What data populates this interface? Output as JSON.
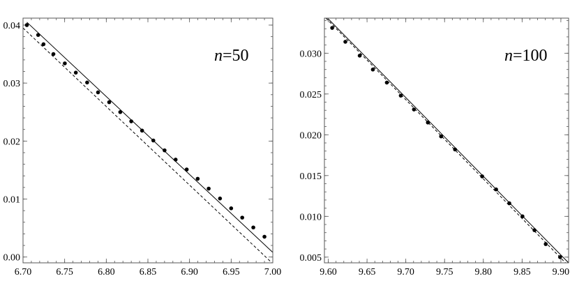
{
  "chart_data": [
    {
      "type": "scatter",
      "panel_label_var": "n",
      "panel_label_eq": "=50",
      "xlim": [
        6.7,
        7.0
      ],
      "ylim": [
        -0.001,
        0.0412
      ],
      "xticks": [
        6.7,
        6.75,
        6.8,
        6.85,
        6.9,
        6.95,
        7.0
      ],
      "xtick_labels": [
        "6.70",
        "6.75",
        "6.80",
        "6.85",
        "6.90",
        "6.95",
        "7.00"
      ],
      "yticks": [
        0.0,
        0.01,
        0.02,
        0.03,
        0.04
      ],
      "ytick_labels": [
        "0.00",
        "0.01",
        "0.02",
        "0.03",
        "0.04"
      ],
      "series": [
        {
          "style": "points",
          "x": [
            6.7046,
            6.7182,
            6.7246,
            6.7365,
            6.7502,
            6.7634,
            6.777,
            6.7901,
            6.8035,
            6.8168,
            6.83,
            6.843,
            6.8565,
            6.87,
            6.8833,
            6.8966,
            6.9098,
            6.923,
            6.9366,
            6.95,
            6.9633,
            6.9766,
            6.99
          ],
          "y": [
            0.04,
            0.0383,
            0.0367,
            0.035,
            0.0334,
            0.0318,
            0.0301,
            0.0284,
            0.0267,
            0.025,
            0.0234,
            0.0218,
            0.0201,
            0.0184,
            0.0168,
            0.0151,
            0.0135,
            0.0118,
            0.0101,
            0.0084,
            0.0068,
            0.0051,
            0.0035
          ]
        },
        {
          "style": "solid",
          "x": [
            6.7046,
            7.0
          ],
          "y": [
            0.0405,
            0.0008
          ]
        },
        {
          "style": "dashed",
          "x": [
            6.7,
            6.999
          ],
          "y": [
            0.0395,
            -0.001
          ]
        }
      ]
    },
    {
      "type": "scatter",
      "panel_label_var": "n",
      "panel_label_eq": "=100",
      "xlim": [
        9.595,
        9.91
      ],
      "ylim": [
        0.0043,
        0.0343
      ],
      "xticks": [
        9.6,
        9.65,
        9.7,
        9.75,
        9.8,
        9.85,
        9.9
      ],
      "xtick_labels": [
        "9.60",
        "9.65",
        "9.70",
        "9.75",
        "9.80",
        "9.85",
        "9.90"
      ],
      "yticks": [
        0.005,
        0.01,
        0.015,
        0.02,
        0.025,
        0.03
      ],
      "ytick_labels": [
        "0.005",
        "0.010",
        "0.015",
        "0.020",
        "0.025",
        "0.030"
      ],
      "series": [
        {
          "style": "points",
          "x": [
            9.605,
            9.622,
            9.6405,
            9.6575,
            9.6755,
            9.6935,
            9.7105,
            9.7285,
            9.7455,
            9.7635,
            9.7985,
            9.8165,
            9.8335,
            9.8505,
            9.866,
            9.8805,
            9.899
          ],
          "y": [
            0.0331,
            0.0314,
            0.0297,
            0.028,
            0.0264,
            0.0248,
            0.0231,
            0.0215,
            0.0198,
            0.0182,
            0.0149,
            0.0133,
            0.0116,
            0.01,
            0.0083,
            0.0066,
            0.005
          ]
        },
        {
          "style": "solid",
          "x": [
            9.599,
            9.91
          ],
          "y": [
            0.0343,
            0.0043
          ]
        },
        {
          "style": "dashed",
          "x": [
            9.597,
            9.906
          ],
          "y": [
            0.0343,
            0.0043
          ]
        }
      ]
    }
  ]
}
